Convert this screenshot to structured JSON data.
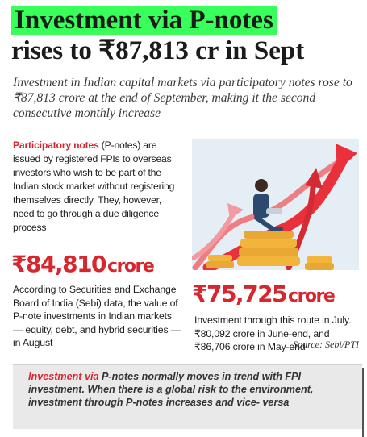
{
  "headline": {
    "highlight": "Investment via P-notes",
    "line2": "rises to ₹87,813 cr in Sept"
  },
  "dek": "Investment in Indian capital markets via participatory notes rose to ₹87,813 crore at the end of September, making it the second consecutive monthly increase",
  "lead": {
    "term": "Participatory notes",
    "rest": " (P-notes) are issued by registered FPIs to overseas investors who wish to be part of the Indian stock market without registering themselves directly. They, however, need to go through a due diligence process"
  },
  "stat_august": {
    "value": "₹84,810",
    "unit": "crore",
    "text": "According to Securities and Exchange Board of India (Sebi) data, the value of P-note investments in Indian markets — equity, debt, and hybrid securities — in August"
  },
  "stat_july": {
    "value": "₹75,725",
    "unit": "crore",
    "text": "Investment through this route in July. ₹80,092 crore in June-end, and ₹86,706 crore in May-end"
  },
  "source": "Source: Sebi/PTI",
  "note": {
    "lead": "Investment via",
    "rest": " P-notes normally moves in trend with FPI investment. When there is a global risk to the environment, investment through P-notes increases and vice- versa"
  },
  "illustration": {
    "icon": "investor-growth-chart-illustration",
    "colors": {
      "arrow": "#e8313a",
      "coins": "#f2b43a",
      "person": "#2c4a6e",
      "bg": "#e6eef5"
    }
  }
}
